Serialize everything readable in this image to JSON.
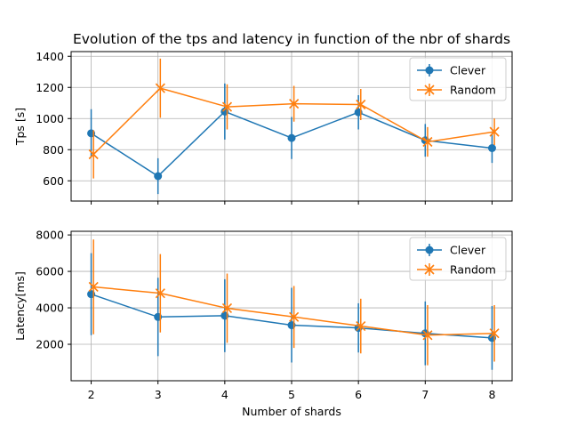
{
  "chart_data": [
    {
      "type": "line",
      "title": "Evolution of the tps and latency in function of the nbr of shards",
      "xlabel": "",
      "ylabel": "Tps [s]",
      "x": [
        2,
        3,
        4,
        5,
        6,
        7,
        8
      ],
      "xlim": [
        1.7,
        8.3
      ],
      "ylim": [
        470,
        1430
      ],
      "yticks": [
        600,
        800,
        1000,
        1200,
        1400
      ],
      "grid": true,
      "legend_position": "top-right",
      "series": [
        {
          "name": "Clever",
          "color": "#1f77b4",
          "marker": "circle",
          "values": [
            905,
            630,
            1045,
            875,
            1040,
            860,
            810
          ],
          "err": [
            155,
            115,
            180,
            135,
            110,
            105,
            95
          ]
        },
        {
          "name": "Random",
          "color": "#ff7f0e",
          "marker": "x",
          "values": [
            770,
            1195,
            1075,
            1095,
            1090,
            850,
            915
          ],
          "err": [
            155,
            190,
            145,
            115,
            100,
            95,
            85
          ]
        }
      ]
    },
    {
      "type": "line",
      "xlabel": "Number of shards",
      "ylabel": "Latency[ms]",
      "x": [
        2,
        3,
        4,
        5,
        6,
        7,
        8
      ],
      "xlim": [
        1.7,
        8.3
      ],
      "xticks": [
        2,
        3,
        4,
        5,
        6,
        7,
        8
      ],
      "ylim": [
        0,
        8200
      ],
      "yticks": [
        2000,
        4000,
        6000,
        8000
      ],
      "grid": true,
      "legend_position": "top-right",
      "series": [
        {
          "name": "Clever",
          "color": "#1f77b4",
          "marker": "circle",
          "values": [
            4750,
            3500,
            3570,
            3050,
            2900,
            2600,
            2350
          ],
          "err": [
            2250,
            2150,
            2000,
            2050,
            1350,
            1750,
            1750
          ]
        },
        {
          "name": "Random",
          "color": "#ff7f0e",
          "marker": "x",
          "values": [
            5150,
            4800,
            3980,
            3500,
            3000,
            2500,
            2600
          ],
          "err": [
            2600,
            2150,
            1900,
            1700,
            1500,
            1650,
            1550
          ]
        }
      ]
    }
  ]
}
